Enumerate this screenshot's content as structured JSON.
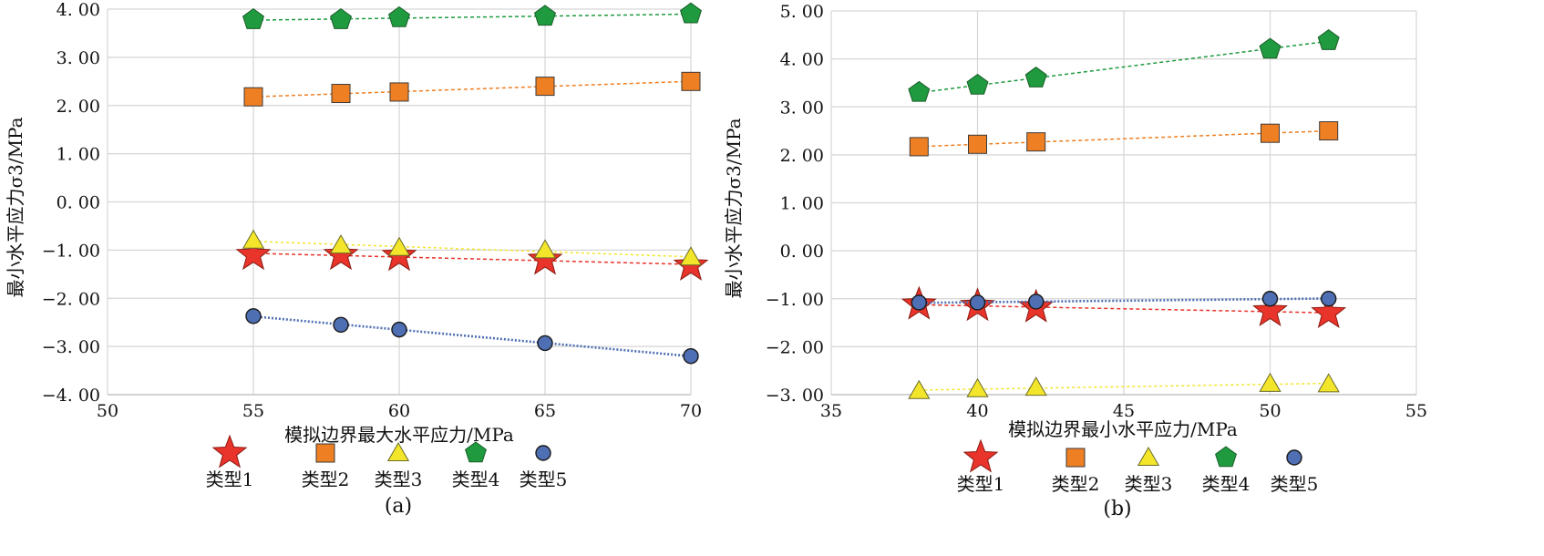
{
  "chart_data": [
    {
      "type": "scatter",
      "panel_label": "(a)",
      "xlabel": "模拟边界最大水平应力/MPa",
      "ylabel": "最小水平应力σ3/MPa",
      "xlim": [
        50,
        70
      ],
      "ylim": [
        -4,
        4
      ],
      "x_ticks": [
        "50",
        "55",
        "60",
        "65",
        "70"
      ],
      "y_ticks": [
        "4. 00",
        "3. 00",
        "2. 00",
        "1. 00",
        "0. 00",
        "−1. 00",
        "−2. 00",
        "−3. 00",
        "−4. 00"
      ],
      "grid": true,
      "legend_position": "bottom",
      "x": [
        55,
        58,
        60,
        65,
        70
      ],
      "series": [
        {
          "name": "类型1",
          "marker": "star",
          "color": "#e8342a",
          "values": [
            -1.1,
            -1.1,
            -1.12,
            -1.2,
            -1.32
          ]
        },
        {
          "name": "类型2",
          "marker": "square",
          "color": "#ee7f22",
          "values": [
            2.18,
            2.25,
            2.28,
            2.4,
            2.5
          ]
        },
        {
          "name": "类型3",
          "marker": "triangle",
          "color": "#f2e52a",
          "values": [
            -0.8,
            -0.9,
            -0.95,
            -1.0,
            -1.15
          ]
        },
        {
          "name": "类型4",
          "marker": "pentagon",
          "color": "#1f9a3f",
          "values": [
            3.78,
            3.78,
            3.82,
            3.85,
            3.9
          ]
        },
        {
          "name": "类型5",
          "marker": "circle",
          "color": "#4e6fb3",
          "values": [
            -2.37,
            -2.55,
            -2.65,
            -2.93,
            -3.2
          ]
        }
      ]
    },
    {
      "type": "scatter",
      "panel_label": "(b)",
      "xlabel": "模拟边界最小水平应力/MPa",
      "ylabel": "最小水平应力σ3/MPa",
      "xlim": [
        35,
        55
      ],
      "ylim": [
        -3,
        5
      ],
      "x_ticks": [
        "35",
        "40",
        "45",
        "50",
        "55"
      ],
      "y_ticks": [
        "5. 00",
        "4. 00",
        "3. 00",
        "2. 00",
        "1. 00",
        "0. 00",
        "−1. 00",
        "−2. 00",
        "−3. 00"
      ],
      "grid": true,
      "legend_position": "bottom",
      "x": [
        38,
        40,
        42,
        50,
        52
      ],
      "series": [
        {
          "name": "类型1",
          "marker": "star",
          "color": "#e8342a",
          "values": [
            -1.12,
            -1.15,
            -1.18,
            -1.26,
            -1.3
          ]
        },
        {
          "name": "类型2",
          "marker": "square",
          "color": "#ee7f22",
          "values": [
            2.17,
            2.22,
            2.27,
            2.45,
            2.5
          ]
        },
        {
          "name": "类型3",
          "marker": "triangle",
          "color": "#f2e52a",
          "values": [
            -2.92,
            -2.88,
            -2.85,
            -2.77,
            -2.78
          ]
        },
        {
          "name": "类型4",
          "marker": "pentagon",
          "color": "#1f9a3f",
          "values": [
            3.3,
            3.45,
            3.6,
            4.2,
            4.38
          ]
        },
        {
          "name": "类型5",
          "marker": "circle",
          "color": "#4e6fb3",
          "values": [
            -1.08,
            -1.08,
            -1.06,
            -1.0,
            -1.0
          ]
        }
      ]
    }
  ]
}
